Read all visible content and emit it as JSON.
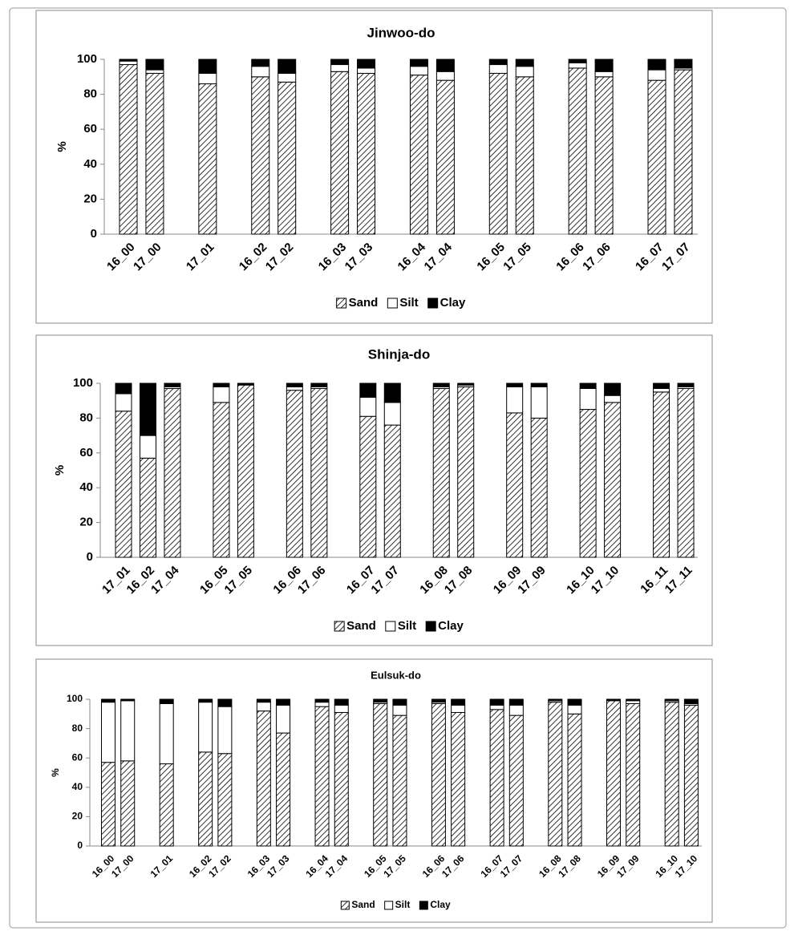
{
  "chart_data": [
    {
      "type": "stacked-bar",
      "title": "Jinwoo-do",
      "y_label": "%",
      "categories": [
        "16_00",
        "17_00",
        null,
        "17_01",
        null,
        "16_02",
        "17_02",
        null,
        "16_03",
        "17_03",
        null,
        "16_04",
        "17_04",
        null,
        "16_05",
        "17_05",
        null,
        "16_06",
        "17_06",
        null,
        "16_07",
        "17_07"
      ],
      "series": [
        {
          "name": "Sand",
          "color": "#000000",
          "pattern": "hatch",
          "values": [
            97,
            92,
            null,
            86,
            null,
            90,
            87,
            null,
            93,
            92,
            null,
            91,
            88,
            null,
            92,
            90,
            null,
            95,
            90,
            null,
            88,
            94
          ]
        },
        {
          "name": "Silt",
          "color": "#ffffff",
          "values": [
            2,
            2,
            null,
            6,
            null,
            6,
            5,
            null,
            4,
            3,
            null,
            5,
            5,
            null,
            5,
            6,
            null,
            3,
            3,
            null,
            6,
            1
          ]
        },
        {
          "name": "Clay",
          "color": "#000000",
          "values": [
            1,
            6,
            null,
            8,
            null,
            4,
            8,
            null,
            3,
            5,
            null,
            4,
            7,
            null,
            3,
            4,
            null,
            2,
            7,
            null,
            6,
            5
          ]
        }
      ],
      "ylim": [
        0,
        100
      ],
      "yticks": [
        0,
        20,
        40,
        60,
        80,
        100
      ],
      "legend": "bottom"
    },
    {
      "type": "stacked-bar",
      "title": "Shinja-do",
      "y_label": "%",
      "categories": [
        "17_01",
        "16_02",
        "17_04",
        null,
        "16_05",
        "17_05",
        null,
        "16_06",
        "17_06",
        null,
        "16_07",
        "17_07",
        null,
        "16_08",
        "17_08",
        null,
        "16_09",
        "17_09",
        null,
        "16_10",
        "17_10",
        null,
        "16_11",
        "17_11"
      ],
      "series": [
        {
          "name": "Sand",
          "color": "#000000",
          "pattern": "hatch",
          "values": [
            84,
            57,
            97,
            null,
            89,
            99,
            null,
            96,
            97,
            null,
            81,
            76,
            null,
            97,
            98,
            null,
            83,
            80,
            null,
            85,
            89,
            null,
            95,
            97
          ]
        },
        {
          "name": "Silt",
          "color": "#ffffff",
          "values": [
            10,
            13,
            1,
            null,
            9,
            0,
            null,
            2,
            1,
            null,
            11,
            13,
            null,
            1,
            1,
            null,
            15,
            18,
            null,
            12,
            4,
            null,
            2,
            1
          ]
        },
        {
          "name": "Clay",
          "color": "#000000",
          "values": [
            6,
            30,
            2,
            null,
            2,
            1,
            null,
            2,
            2,
            null,
            8,
            11,
            null,
            2,
            1,
            null,
            2,
            2,
            null,
            3,
            7,
            null,
            3,
            2
          ]
        }
      ],
      "ylim": [
        0,
        100
      ],
      "yticks": [
        0,
        20,
        40,
        60,
        80,
        100
      ],
      "legend": "bottom"
    },
    {
      "type": "stacked-bar",
      "title": "Eulsuk-do",
      "y_label": "%",
      "categories": [
        "16_00",
        "17_00",
        null,
        "17_01",
        null,
        "16_02",
        "17_02",
        null,
        "16_03",
        "17_03",
        null,
        "16_04",
        "17_04",
        null,
        "16_05",
        "17_05",
        null,
        "16_06",
        "17_06",
        null,
        "16_07",
        "17_07",
        null,
        "16_08",
        "17_08",
        null,
        "16_09",
        "17_09",
        null,
        "16_10",
        "17_10"
      ],
      "series": [
        {
          "name": "Sand",
          "color": "#000000",
          "pattern": "hatch",
          "values": [
            57,
            58,
            null,
            56,
            null,
            64,
            63,
            null,
            92,
            77,
            null,
            95,
            91,
            null,
            97,
            89,
            null,
            97,
            91,
            null,
            93,
            89,
            null,
            98,
            90,
            null,
            99,
            97,
            null,
            98,
            96
          ]
        },
        {
          "name": "Silt",
          "color": "#ffffff",
          "values": [
            41,
            41,
            null,
            41,
            null,
            34,
            32,
            null,
            6,
            19,
            null,
            3,
            5,
            null,
            1,
            7,
            null,
            1,
            5,
            null,
            3,
            7,
            null,
            1,
            6,
            null,
            0,
            2,
            null,
            1,
            1
          ]
        },
        {
          "name": "Clay",
          "color": "#000000",
          "values": [
            2,
            1,
            null,
            3,
            null,
            2,
            5,
            null,
            2,
            4,
            null,
            2,
            4,
            null,
            2,
            4,
            null,
            2,
            4,
            null,
            4,
            4,
            null,
            1,
            4,
            null,
            1,
            1,
            null,
            1,
            3
          ]
        }
      ],
      "ylim": [
        0,
        100
      ],
      "yticks": [
        0,
        20,
        40,
        60,
        80,
        100
      ],
      "legend": "bottom"
    }
  ]
}
